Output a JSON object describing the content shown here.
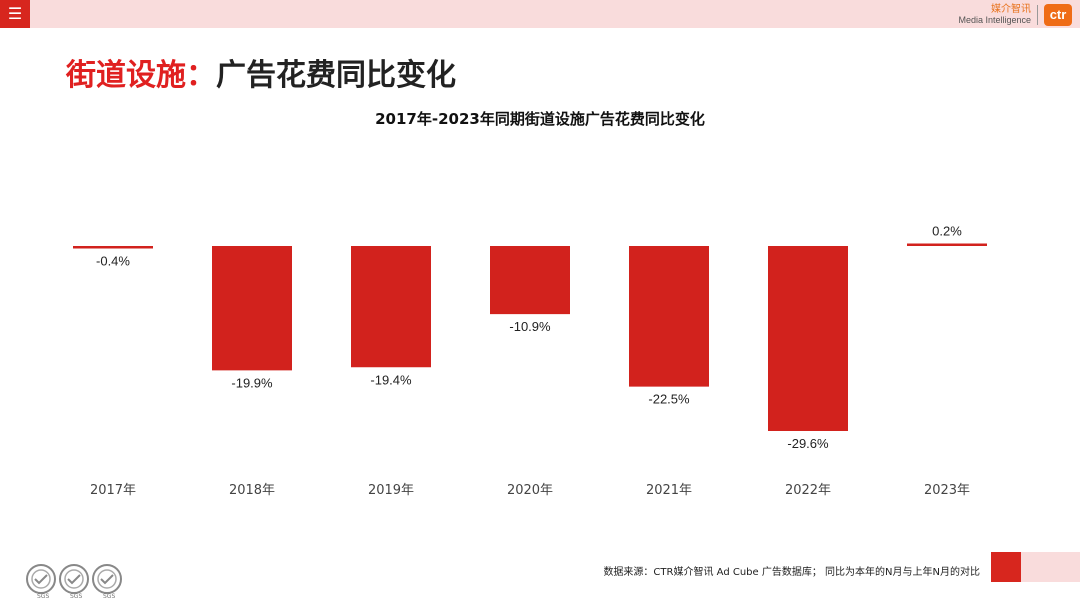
{
  "header": {
    "menu_icon": "menu-icon",
    "brand_cn": "媒介智讯",
    "brand_en": "Media Intelligence",
    "brand_logo": "ctr"
  },
  "page_title": {
    "highlight": "街道设施：",
    "rest": "广告花费同比变化"
  },
  "chart_data": {
    "type": "bar",
    "title": "2017年-2023年同期街道设施广告花费同比变化",
    "categories": [
      "2017年",
      "2018年",
      "2019年",
      "2020年",
      "2021年",
      "2022年",
      "2023年"
    ],
    "values": [
      -0.4,
      -19.9,
      -19.4,
      -10.9,
      -22.5,
      -29.6,
      0.2
    ],
    "value_labels": [
      "-0.4%",
      "-19.9%",
      "-19.4%",
      "-10.9%",
      "-22.5%",
      "-29.6%",
      "0.2%"
    ],
    "unit": "%",
    "ylim": [
      -30,
      2
    ],
    "grid": false,
    "legend": "none",
    "bar_color": "#d2221d"
  },
  "footer": {
    "source": "数据来源：CTR媒介智讯 Ad Cube 广告数据库；  同比为本年的N月与上年N月的对比",
    "seal_label": "SGS"
  },
  "colors": {
    "accent": "#d7261e",
    "title_highlight": "#e02020",
    "light_band": "#f9dcdc"
  }
}
